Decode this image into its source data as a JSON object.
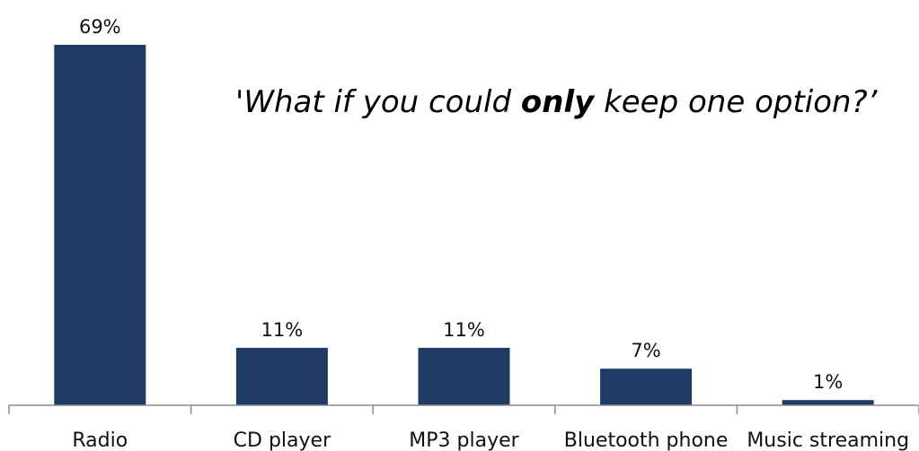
{
  "chart_data": {
    "type": "bar",
    "categories": [
      "Radio",
      "CD player",
      "MP3 player",
      "Bluetooth phone",
      "Music streaming"
    ],
    "values": [
      69,
      11,
      11,
      7,
      1
    ],
    "value_labels": [
      "69%",
      "11%",
      "11%",
      "7%",
      "1%"
    ],
    "unit": "%",
    "title": "",
    "xlabel": "",
    "ylabel": "",
    "ylim": [
      0,
      69
    ],
    "grid": false,
    "legend": "none",
    "bar_color": "#1f3b63",
    "annotation": {
      "prefix": "'What if you could ",
      "emphasis": "only",
      "suffix": " keep one option?’"
    }
  }
}
